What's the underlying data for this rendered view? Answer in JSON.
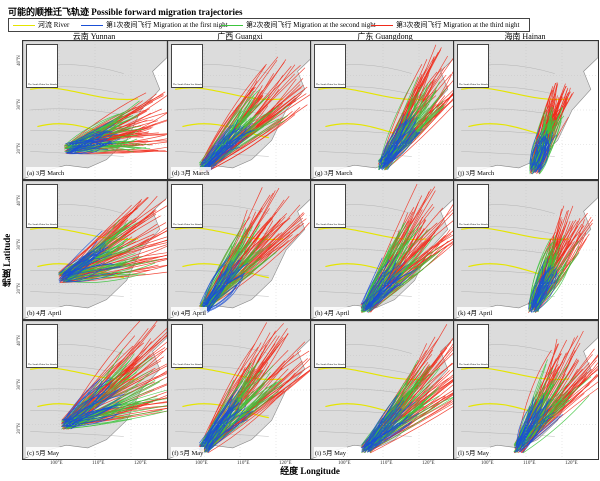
{
  "legend": {
    "title": "可能的顺推迁飞轨迹 Possible forward migration trajectories",
    "items": [
      {
        "label": "河流 River",
        "color": "#e5e500"
      },
      {
        "label": "第1次夜间飞行 Migration at the first night",
        "color": "#1a4fd6"
      },
      {
        "label": "第2次夜间飞行 Migration at the second night",
        "color": "#3cc43c"
      },
      {
        "label": "第3次夜间飞行 Migration at the third night",
        "color": "#f02a1a"
      }
    ]
  },
  "axis": {
    "ylabel": "纬度 Latitude",
    "xlabel": "经度 Longitude"
  },
  "columns": [
    "云南 Yunnan",
    "广西 Guangxi",
    "广东 Guangdong",
    "海南 Hainan"
  ],
  "inset_text": "The South China Sea Islands",
  "panels": [
    {
      "label": "(a) 3月 March",
      "row": 0,
      "col": 0,
      "src": [
        0.32,
        0.78
      ],
      "angle": -15,
      "len": 0.7,
      "spread": 0.32
    },
    {
      "label": "(d) 3月 March",
      "row": 0,
      "col": 1,
      "src": [
        0.25,
        0.92
      ],
      "angle": -45,
      "len": 0.85,
      "spread": 0.22
    },
    {
      "label": "(g) 3月 March",
      "row": 0,
      "col": 2,
      "src": [
        0.5,
        0.9
      ],
      "angle": -55,
      "len": 0.8,
      "spread": 0.22
    },
    {
      "label": "(j) 3月 March",
      "row": 0,
      "col": 3,
      "src": [
        0.56,
        0.93
      ],
      "angle": -70,
      "len": 0.55,
      "spread": 0.14
    },
    {
      "label": "(b) 4月 April",
      "row": 1,
      "col": 0,
      "src": [
        0.28,
        0.7
      ],
      "angle": -25,
      "len": 0.8,
      "spread": 0.36
    },
    {
      "label": "(e) 4月 April",
      "row": 1,
      "col": 1,
      "src": [
        0.25,
        0.92
      ],
      "angle": -50,
      "len": 0.85,
      "spread": 0.25
    },
    {
      "label": "(h) 4月 April",
      "row": 1,
      "col": 2,
      "src": [
        0.38,
        0.92
      ],
      "angle": -50,
      "len": 0.85,
      "spread": 0.3
    },
    {
      "label": "(k) 4月 April",
      "row": 1,
      "col": 3,
      "src": [
        0.55,
        0.92
      ],
      "angle": -65,
      "len": 0.65,
      "spread": 0.2
    },
    {
      "label": "(c) 5月 May",
      "row": 2,
      "col": 0,
      "src": [
        0.3,
        0.75
      ],
      "angle": -30,
      "len": 0.9,
      "spread": 0.4
    },
    {
      "label": "(f) 5月 May",
      "row": 2,
      "col": 1,
      "src": [
        0.25,
        0.92
      ],
      "angle": -50,
      "len": 0.9,
      "spread": 0.25
    },
    {
      "label": "(i) 5月 May",
      "row": 2,
      "col": 2,
      "src": [
        0.38,
        0.92
      ],
      "angle": -45,
      "len": 0.9,
      "spread": 0.28
    },
    {
      "label": "(l) 5月 May",
      "row": 2,
      "col": 3,
      "src": [
        0.45,
        0.92
      ],
      "angle": -55,
      "len": 0.8,
      "spread": 0.28
    }
  ],
  "lat_ticks": [
    "40°N",
    "30°N",
    "20°N"
  ],
  "lon_ticks": [
    "100°E",
    "110°E",
    "120°E"
  ]
}
